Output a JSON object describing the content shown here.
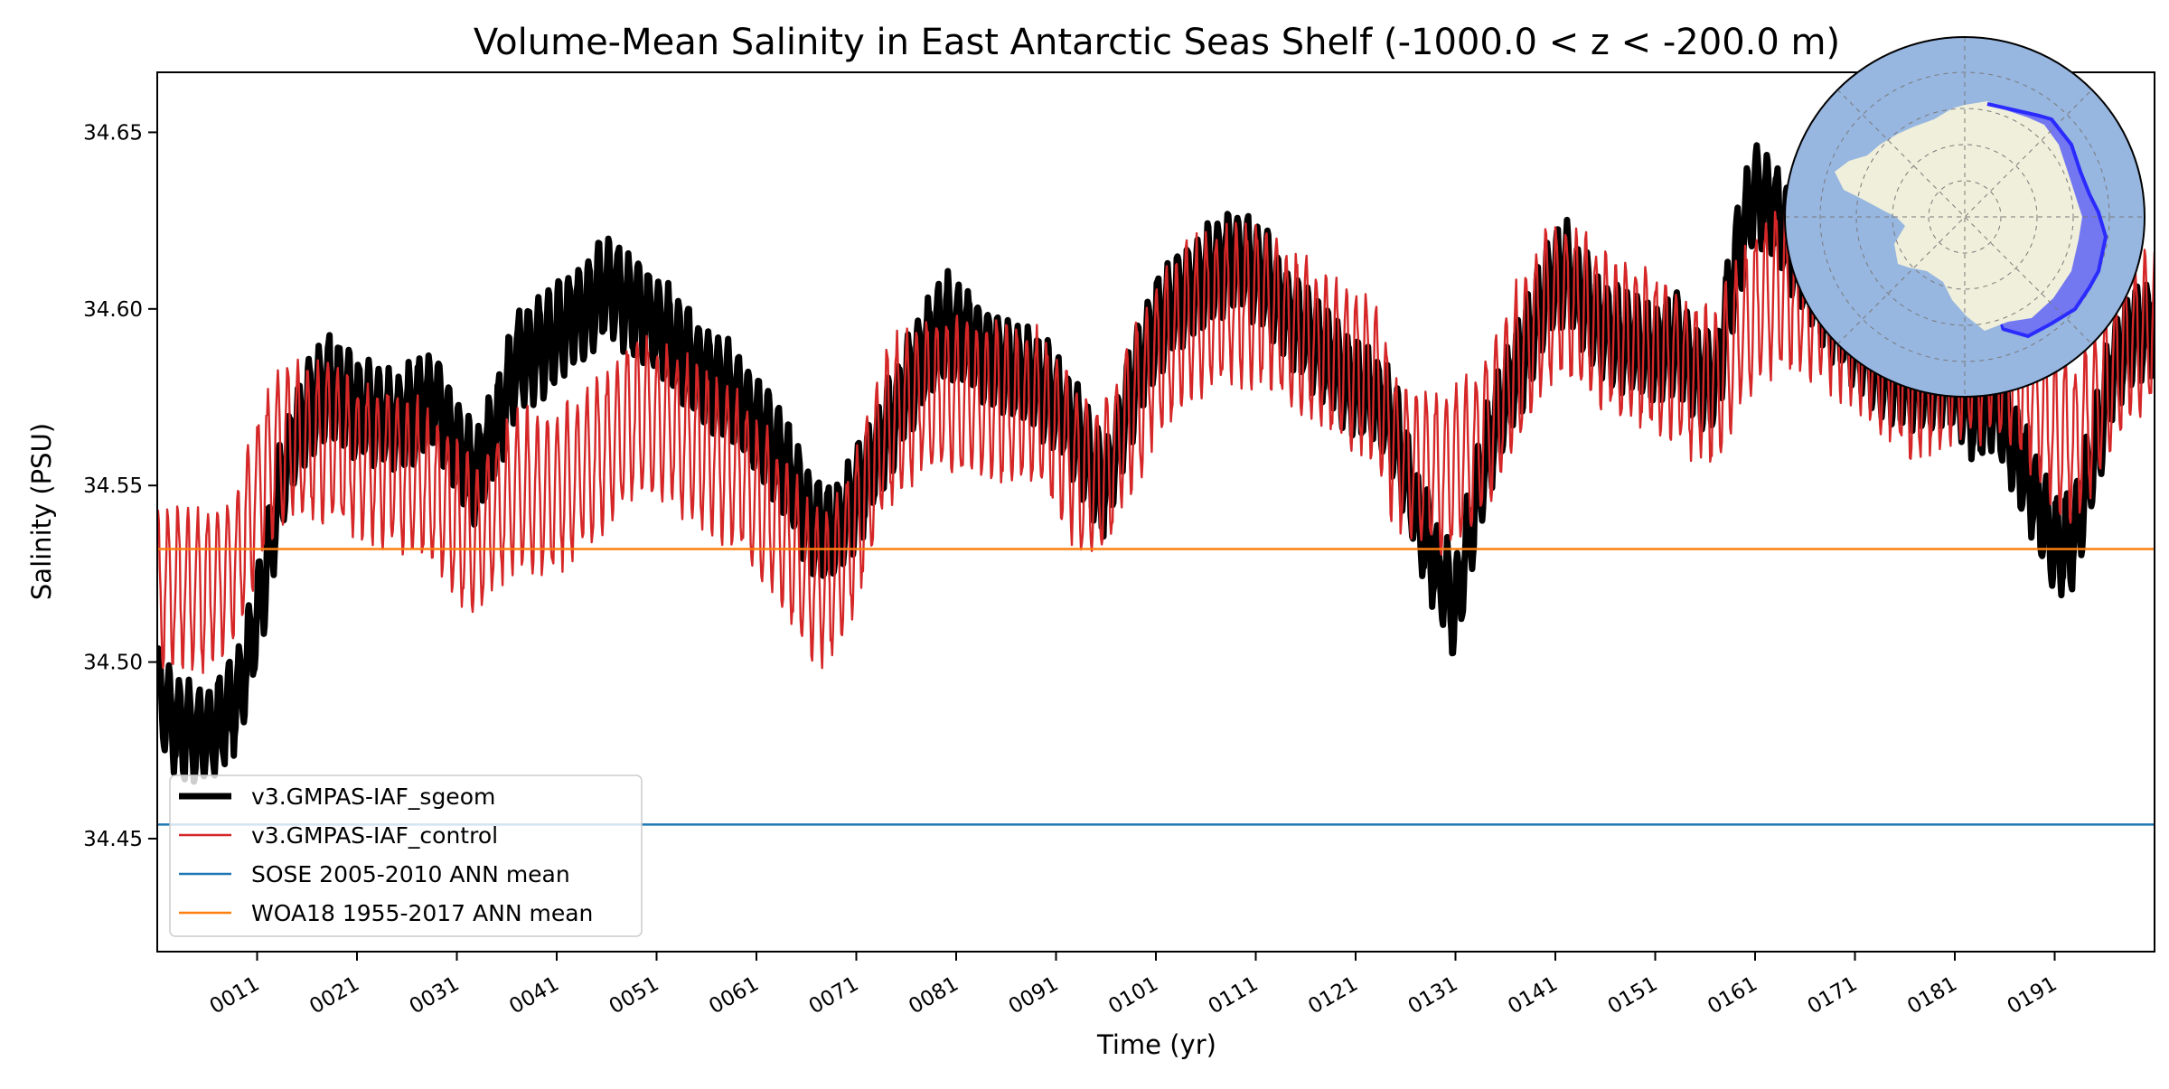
{
  "chart_data": {
    "type": "line",
    "title": "Volume-Mean Salinity in East Antarctic Seas Shelf (-1000.0 < z < -200.0 m)",
    "xlabel": "Time (yr)",
    "ylabel": "Salinity (PSU)",
    "xlim": [
      1,
      201
    ],
    "ylim": [
      34.418,
      34.667
    ],
    "x_ticks": [
      11,
      21,
      31,
      41,
      51,
      61,
      71,
      81,
      91,
      101,
      111,
      121,
      131,
      141,
      151,
      161,
      171,
      181,
      191
    ],
    "x_tick_labels": [
      "0011",
      "0021",
      "0031",
      "0041",
      "0051",
      "0061",
      "0071",
      "0081",
      "0091",
      "0101",
      "0111",
      "0121",
      "0131",
      "0141",
      "0151",
      "0161",
      "0171",
      "0181",
      "0191"
    ],
    "y_ticks": [
      34.45,
      34.5,
      34.55,
      34.6,
      34.65
    ],
    "y_tick_labels": [
      "34.45",
      "34.50",
      "34.55",
      "34.60",
      "34.65"
    ],
    "grid": false,
    "legend_position": "lower-left",
    "inset": "south-polar-map-east-antarctic-shelf-region",
    "series": [
      {
        "name": "v3.GMPAS-IAF_sgeom",
        "color": "#000000",
        "style": "thick-line",
        "seasonal_amplitude": 0.013,
        "x": [
          1,
          3,
          5,
          7,
          9,
          11,
          13,
          15,
          18,
          21,
          25,
          29,
          31,
          33,
          35,
          37,
          40,
          43,
          46,
          48,
          50,
          53,
          56,
          59,
          62,
          64,
          66,
          68,
          70,
          72,
          74,
          76,
          78,
          80,
          83,
          86,
          89,
          91,
          93,
          95,
          96,
          98,
          101,
          104,
          107,
          109,
          112,
          114,
          117,
          120,
          123,
          125,
          127,
          129,
          131,
          133,
          135,
          138,
          140,
          142,
          145,
          148,
          151,
          153,
          155,
          157,
          159,
          161,
          163,
          166,
          168,
          171,
          174,
          177,
          180,
          183,
          185,
          187,
          189,
          191,
          193,
          195,
          197,
          199,
          201
        ],
        "y": [
          34.492,
          34.482,
          34.479,
          34.481,
          34.49,
          34.512,
          34.545,
          34.566,
          34.579,
          34.572,
          34.568,
          34.575,
          34.561,
          34.552,
          34.566,
          34.585,
          34.59,
          34.598,
          34.607,
          34.602,
          34.599,
          34.59,
          34.581,
          34.575,
          34.564,
          34.555,
          34.542,
          34.535,
          34.541,
          34.552,
          34.565,
          34.577,
          34.588,
          34.596,
          34.59,
          34.583,
          34.579,
          34.574,
          34.565,
          34.552,
          34.549,
          34.572,
          34.595,
          34.605,
          34.611,
          34.615,
          34.608,
          34.599,
          34.59,
          34.58,
          34.575,
          34.565,
          34.543,
          34.528,
          34.515,
          34.545,
          34.568,
          34.588,
          34.604,
          34.611,
          34.597,
          34.59,
          34.587,
          34.591,
          34.582,
          34.578,
          34.612,
          34.634,
          34.627,
          34.612,
          34.602,
          34.592,
          34.583,
          34.578,
          34.582,
          34.571,
          34.575,
          34.56,
          34.548,
          34.533,
          34.535,
          34.56,
          34.585,
          34.594,
          34.596
        ]
      },
      {
        "name": "v3.GMPAS-IAF_control",
        "color": "#d62728",
        "style": "thin-line",
        "seasonal_amplitude": 0.021,
        "x": [
          1,
          3,
          5,
          7,
          9,
          11,
          13,
          15,
          18,
          21,
          25,
          29,
          31,
          33,
          35,
          37,
          40,
          43,
          46,
          48,
          50,
          53,
          56,
          59,
          62,
          64,
          66,
          68,
          70,
          72,
          74,
          76,
          78,
          80,
          83,
          86,
          89,
          91,
          93,
          95,
          96,
          98,
          101,
          104,
          107,
          109,
          112,
          114,
          117,
          120,
          123,
          125,
          127,
          129,
          131,
          133,
          135,
          138,
          140,
          142,
          145,
          148,
          151,
          153,
          155,
          157,
          159,
          161,
          163,
          166,
          168,
          171,
          174,
          177,
          180,
          183,
          185,
          187,
          189,
          191,
          193,
          195,
          197,
          199,
          201
        ],
        "y": [
          34.52,
          34.522,
          34.52,
          34.521,
          34.528,
          34.548,
          34.56,
          34.562,
          34.563,
          34.557,
          34.555,
          34.548,
          34.54,
          34.533,
          34.544,
          34.55,
          34.546,
          34.553,
          34.56,
          34.567,
          34.57,
          34.566,
          34.56,
          34.555,
          34.543,
          34.535,
          34.525,
          34.52,
          34.53,
          34.548,
          34.566,
          34.573,
          34.576,
          34.575,
          34.575,
          34.573,
          34.572,
          34.565,
          34.555,
          34.55,
          34.552,
          34.567,
          34.585,
          34.595,
          34.601,
          34.602,
          34.601,
          34.596,
          34.59,
          34.585,
          34.58,
          34.56,
          34.555,
          34.553,
          34.555,
          34.56,
          34.57,
          34.59,
          34.6,
          34.603,
          34.595,
          34.591,
          34.588,
          34.585,
          34.58,
          34.578,
          34.59,
          34.6,
          34.605,
          34.604,
          34.6,
          34.595,
          34.585,
          34.58,
          34.583,
          34.585,
          34.587,
          34.582,
          34.575,
          34.565,
          34.562,
          34.572,
          34.583,
          34.592,
          34.596
        ]
      },
      {
        "name": "SOSE 2005-2010 ANN mean",
        "color": "#1f77b4",
        "style": "horizontal-line",
        "value": 34.454
      },
      {
        "name": "WOA18 1955-2017 ANN mean",
        "color": "#ff7f0e",
        "style": "horizontal-line",
        "value": 34.532
      }
    ]
  },
  "colors": {
    "ocean": "#97b6e0",
    "land": "#efefdb",
    "region_fill": "#6c6cf2",
    "region_edge": "#2b2bff"
  }
}
